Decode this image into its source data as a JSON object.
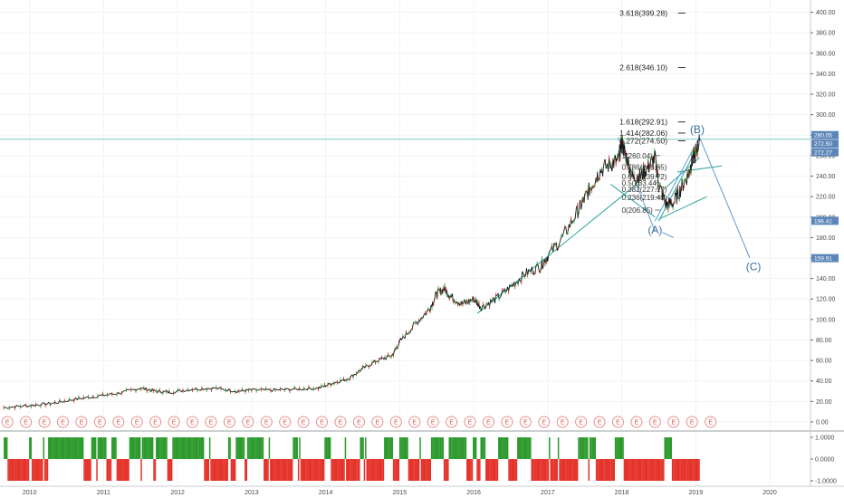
{
  "chart_data": {
    "type": "line",
    "x_axis": {
      "ticks": [
        "2010",
        "2011",
        "2012",
        "2013",
        "2014",
        "2015",
        "2016",
        "2017",
        "2018",
        "2019",
        "2020"
      ],
      "range": [
        2009.6,
        2020.55
      ]
    },
    "y_axis": {
      "scale": "linear",
      "range": [
        -8,
        412
      ],
      "ticks": [
        "0.00",
        "20.00",
        "40.00",
        "60.00",
        "80.00",
        "100.00",
        "120.00",
        "140.00",
        "160.00",
        "180.00",
        "200.00",
        "220.00",
        "240.00",
        "260.00",
        "280.00",
        "300.00",
        "320.00",
        "340.00",
        "360.00",
        "380.00",
        "400.00"
      ]
    },
    "price_series": {
      "x": [
        2009.65,
        2010.0,
        2010.3,
        2010.6,
        2010.9,
        2011.2,
        2011.5,
        2011.7,
        2011.9,
        2012.2,
        2012.5,
        2012.8,
        2013.0,
        2013.3,
        2013.6,
        2013.9,
        2014.1,
        2014.3,
        2014.5,
        2014.7,
        2014.9,
        2015.0,
        2015.2,
        2015.4,
        2015.5,
        2015.6,
        2015.7,
        2015.85,
        2016.0,
        2016.1,
        2016.3,
        2016.5,
        2016.7,
        2016.9,
        2017.0,
        2017.2,
        2017.4,
        2017.5,
        2017.6,
        2017.7,
        2017.85,
        2017.95,
        2018.0,
        2018.05,
        2018.15,
        2018.25,
        2018.35,
        2018.45,
        2018.5,
        2018.6,
        2018.7,
        2018.8,
        2018.9,
        2018.95,
        2019.0,
        2019.05
      ],
      "y": [
        14,
        16,
        18,
        22,
        25,
        28,
        33,
        30,
        29,
        32,
        33,
        30,
        31,
        31,
        32,
        33,
        38,
        42,
        52,
        60,
        65,
        78,
        95,
        110,
        125,
        130,
        122,
        115,
        120,
        112,
        120,
        132,
        145,
        152,
        162,
        180,
        205,
        218,
        232,
        245,
        252,
        255,
        272,
        262,
        238,
        240,
        248,
        258,
        232,
        212,
        214,
        228,
        242,
        255,
        262,
        274
      ],
      "color": "#1a1a1a"
    },
    "fib_levels": [
      {
        "label": "3.618(399.28)",
        "value": 399.28
      },
      {
        "label": "2.618(346.10)",
        "value": 346.1
      },
      {
        "label": "1.618(292.91)",
        "value": 292.91
      },
      {
        "label": "1.414(282.06)",
        "value": 282.06
      },
      {
        "label": "1.272(274.50)",
        "value": 274.5
      },
      {
        "label": "1(260.04)",
        "value": 260.04
      },
      {
        "label": "0.786(248.65)",
        "value": 248.65
      },
      {
        "label": "0.618(239.72)",
        "value": 239.72
      },
      {
        "label": "0.5(233.44)",
        "value": 233.44
      },
      {
        "label": "0.382(227.17)",
        "value": 227.17
      },
      {
        "label": "0.236(219.40)",
        "value": 219.4
      },
      {
        "label": "0(206.85)",
        "value": 206.85
      }
    ],
    "price_tags": [
      {
        "label": "280.05",
        "value": 280.05,
        "color": "#5d86b8"
      },
      {
        "label": "272.50",
        "value": 272.5,
        "color": "#5d86b8"
      },
      {
        "label": "272.27",
        "value": 272.27,
        "color": "#5d86b8"
      },
      {
        "label": "196.41",
        "value": 196.41,
        "color": "#5d86b8"
      },
      {
        "label": "159.91",
        "value": 159.91,
        "color": "#5d86b8"
      }
    ],
    "horizontal_line": {
      "value": 276.0,
      "color": "#7ac9c1"
    },
    "wave_labels": [
      {
        "label": "(A)",
        "x": 2018.45,
        "y": 184
      },
      {
        "label": "(B)",
        "x": 2019.02,
        "y": 282
      },
      {
        "label": "(C)",
        "x": 2019.78,
        "y": 148
      }
    ],
    "earnings_markers": {
      "label": "E",
      "x": [
        2009.7,
        2009.95,
        2010.2,
        2010.45,
        2010.7,
        2010.95,
        2011.2,
        2011.45,
        2011.7,
        2011.95,
        2012.2,
        2012.45,
        2012.7,
        2012.95,
        2013.2,
        2013.45,
        2013.7,
        2013.95,
        2014.2,
        2014.45,
        2014.7,
        2014.95,
        2015.2,
        2015.45,
        2015.7,
        2015.95,
        2016.2,
        2016.45,
        2016.7,
        2016.95,
        2017.2,
        2017.45,
        2017.7,
        2017.95,
        2018.2,
        2018.45,
        2018.7,
        2018.95,
        2019.2
      ]
    },
    "oscillator": {
      "ticks": [
        "1.0000",
        "0.0000",
        "-1.0000"
      ],
      "range": [
        -1.25,
        1.25
      ],
      "up_color": "#2d9a2d",
      "down_color": "#e4332a"
    },
    "colors": {
      "trendline": "#2aa59a",
      "projection": "#5b9bd5",
      "text": "#3d6d9c"
    }
  }
}
